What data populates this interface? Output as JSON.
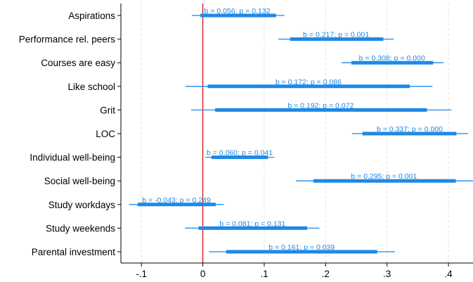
{
  "chart_data": {
    "type": "coefficient-plot",
    "title": "",
    "xlabel": "",
    "ylabel": "",
    "xlim": [
      -0.13,
      0.44
    ],
    "x_ticks": [
      -0.1,
      0,
      0.1,
      0.2,
      0.3,
      0.4
    ],
    "x_tick_labels": [
      "-.1",
      "0",
      ".1",
      ".2",
      ".3",
      ".4"
    ],
    "grid": "vertical dashed",
    "reference_line": 0,
    "reference_line_color": "#cc0000",
    "series_color": "#1e88e5",
    "rows": [
      {
        "label": "Aspirations",
        "b": 0.056,
        "p_text": "0.132",
        "ci95": [
          -0.018,
          0.133
        ],
        "ci90": [
          -0.004,
          0.119
        ],
        "data_label": "b = 0.056; p = 0.132"
      },
      {
        "label": "Performance rel. peers",
        "b": 0.217,
        "p_text": "0.001",
        "ci95": [
          0.123,
          0.311
        ],
        "ci90": [
          0.142,
          0.294
        ],
        "data_label": "b = 0.217; p = 0.001"
      },
      {
        "label": "Courses are easy",
        "b": 0.308,
        "p_text": "0.000",
        "ci95": [
          0.226,
          0.392
        ],
        "ci90": [
          0.242,
          0.375
        ],
        "data_label": "b = 0.308; p = 0.000"
      },
      {
        "label": "Like school",
        "b": 0.172,
        "p_text": "0.086",
        "ci95": [
          -0.028,
          0.374
        ],
        "ci90": [
          0.008,
          0.337
        ],
        "data_label": "b = 0.172; p = 0.086"
      },
      {
        "label": "Grit",
        "b": 0.192,
        "p_text": "0.072",
        "ci95": [
          -0.019,
          0.405
        ],
        "ci90": [
          0.02,
          0.365
        ],
        "data_label": "b = 0.192; p = 0.072"
      },
      {
        "label": "LOC",
        "b": 0.337,
        "p_text": "0.000",
        "ci95": [
          0.243,
          0.432
        ],
        "ci90": [
          0.26,
          0.413
        ],
        "data_label": "b = 0.337; p = 0.000"
      },
      {
        "label": "Individual well-being",
        "b": 0.06,
        "p_text": "0.041",
        "ci95": [
          0.004,
          0.116
        ],
        "ci90": [
          0.014,
          0.106
        ],
        "data_label": "b = 0.060; p = 0.041"
      },
      {
        "label": "Social well-being",
        "b": 0.295,
        "p_text": "0.001",
        "ci95": [
          0.152,
          0.44
        ],
        "ci90": [
          0.18,
          0.412
        ],
        "data_label": "b = 0.295; p = 0.001"
      },
      {
        "label": "Study workdays",
        "b": -0.043,
        "p_text": "0.249",
        "ci95": [
          -0.12,
          0.034
        ],
        "ci90": [
          -0.106,
          0.021
        ],
        "data_label": "b = -0.043; p = 0.249"
      },
      {
        "label": "Study weekends",
        "b": 0.081,
        "p_text": "0.131",
        "ci95": [
          -0.029,
          0.19
        ],
        "ci90": [
          -0.007,
          0.17
        ],
        "data_label": "b = 0.081; p = 0.131"
      },
      {
        "label": "Parental investment",
        "b": 0.161,
        "p_text": "0.039",
        "ci95": [
          0.01,
          0.313
        ],
        "ci90": [
          0.038,
          0.284
        ],
        "data_label": "b = 0.161; p = 0.039"
      }
    ]
  }
}
